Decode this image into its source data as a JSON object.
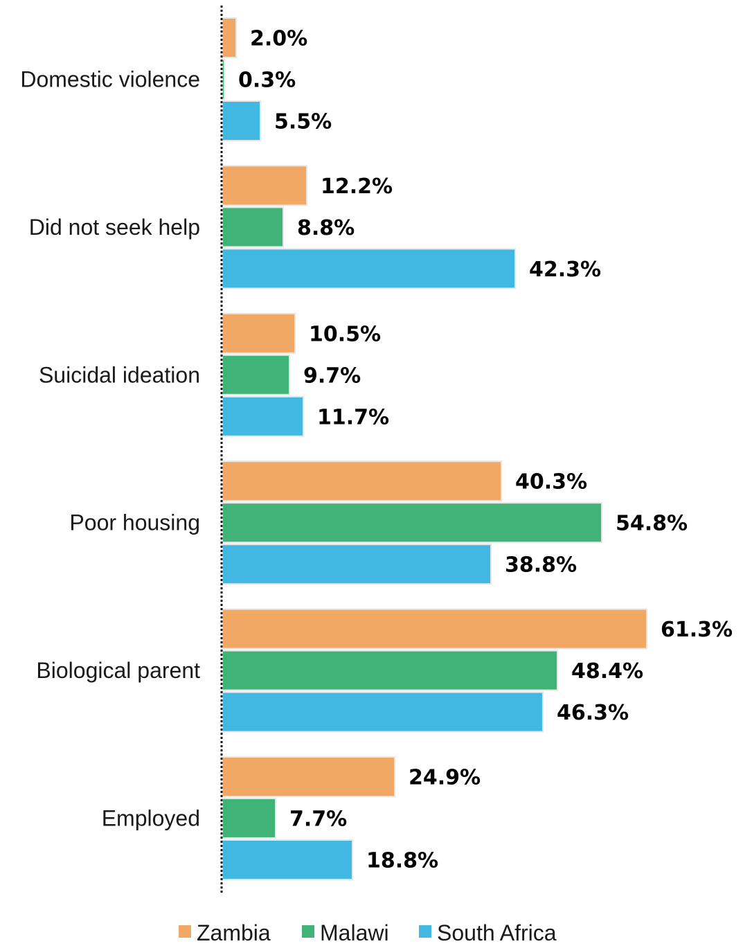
{
  "chart_data": {
    "type": "bar",
    "orientation": "horizontal",
    "categories": [
      "Domestic violence",
      "Did not seek help",
      "Suicidal ideation",
      "Poor housing",
      "Biological parent",
      "Employed"
    ],
    "series": [
      {
        "name": "Zambia",
        "color": "#f0a864",
        "values": [
          2.0,
          12.2,
          10.5,
          40.3,
          61.3,
          24.9
        ],
        "labels": [
          "2.0%",
          "12.2%",
          "10.5%",
          "40.3%",
          "61.3%",
          "24.9%"
        ]
      },
      {
        "name": "Malawi",
        "color": "#41b278",
        "values": [
          0.3,
          8.8,
          9.7,
          54.8,
          48.4,
          7.7
        ],
        "labels": [
          "0.3%",
          "8.8%",
          "9.7%",
          "54.8%",
          "48.4%",
          "7.7%"
        ]
      },
      {
        "name": "South Africa",
        "color": "#41b8e1",
        "values": [
          5.5,
          42.3,
          11.7,
          38.8,
          46.3,
          18.8
        ],
        "labels": [
          "5.5%",
          "42.3%",
          "11.7%",
          "38.8%",
          "46.3%",
          "18.8%"
        ]
      }
    ],
    "unit": "%",
    "axis_line": "dotted",
    "gridlines": false,
    "legend_position": "bottom"
  }
}
